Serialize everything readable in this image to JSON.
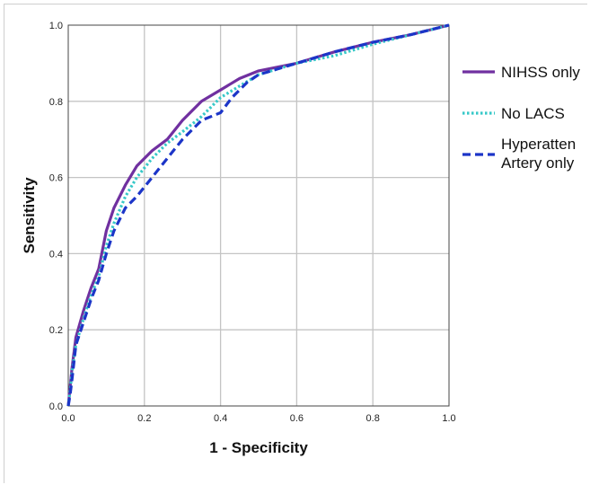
{
  "chart_data": {
    "type": "line",
    "title": "",
    "xlabel": "1 - Specificity",
    "ylabel": "Sensitivity",
    "xlim": [
      0,
      1
    ],
    "ylim": [
      0,
      1
    ],
    "x_ticks": [
      "0.0",
      "0.2",
      "0.4",
      "0.6",
      "0.8",
      "1.0"
    ],
    "y_ticks": [
      "0.0",
      "0.2",
      "0.4",
      "0.6",
      "0.8",
      "1.0"
    ],
    "grid": true,
    "legend_position": "right",
    "series": [
      {
        "name": "NIHSS only",
        "color": "#7030a0",
        "style": "solid",
        "points": [
          [
            0,
            0
          ],
          [
            0.005,
            0.05
          ],
          [
            0.01,
            0.1
          ],
          [
            0.02,
            0.18
          ],
          [
            0.04,
            0.25
          ],
          [
            0.06,
            0.31
          ],
          [
            0.08,
            0.36
          ],
          [
            0.1,
            0.46
          ],
          [
            0.12,
            0.52
          ],
          [
            0.15,
            0.58
          ],
          [
            0.18,
            0.63
          ],
          [
            0.22,
            0.67
          ],
          [
            0.26,
            0.7
          ],
          [
            0.3,
            0.75
          ],
          [
            0.35,
            0.8
          ],
          [
            0.4,
            0.83
          ],
          [
            0.45,
            0.86
          ],
          [
            0.5,
            0.88
          ],
          [
            0.6,
            0.9
          ],
          [
            0.7,
            0.93
          ],
          [
            0.8,
            0.955
          ],
          [
            0.9,
            0.975
          ],
          [
            1,
            1
          ]
        ]
      },
      {
        "name": "No LACS",
        "color": "#36c8c8",
        "style": "dotted",
        "points": [
          [
            0,
            0
          ],
          [
            0.005,
            0.04
          ],
          [
            0.01,
            0.09
          ],
          [
            0.02,
            0.16
          ],
          [
            0.04,
            0.23
          ],
          [
            0.06,
            0.29
          ],
          [
            0.08,
            0.34
          ],
          [
            0.1,
            0.42
          ],
          [
            0.12,
            0.48
          ],
          [
            0.15,
            0.55
          ],
          [
            0.18,
            0.6
          ],
          [
            0.22,
            0.65
          ],
          [
            0.26,
            0.69
          ],
          [
            0.3,
            0.72
          ],
          [
            0.35,
            0.76
          ],
          [
            0.4,
            0.81
          ],
          [
            0.45,
            0.84
          ],
          [
            0.5,
            0.87
          ],
          [
            0.6,
            0.9
          ],
          [
            0.7,
            0.92
          ],
          [
            0.8,
            0.95
          ],
          [
            0.9,
            0.975
          ],
          [
            1,
            1
          ]
        ]
      },
      {
        "name": "Hyperatten Artery only",
        "legend_lines": [
          "Hyperatten",
          "Artery only"
        ],
        "color": "#1c35c8",
        "style": "dashed",
        "points": [
          [
            0,
            0
          ],
          [
            0.005,
            0.03
          ],
          [
            0.01,
            0.07
          ],
          [
            0.02,
            0.16
          ],
          [
            0.04,
            0.22
          ],
          [
            0.06,
            0.28
          ],
          [
            0.08,
            0.33
          ],
          [
            0.1,
            0.4
          ],
          [
            0.12,
            0.46
          ],
          [
            0.15,
            0.52
          ],
          [
            0.18,
            0.55
          ],
          [
            0.22,
            0.6
          ],
          [
            0.26,
            0.65
          ],
          [
            0.3,
            0.7
          ],
          [
            0.35,
            0.75
          ],
          [
            0.4,
            0.77
          ],
          [
            0.43,
            0.81
          ],
          [
            0.47,
            0.85
          ],
          [
            0.5,
            0.87
          ],
          [
            0.6,
            0.9
          ],
          [
            0.7,
            0.93
          ],
          [
            0.8,
            0.955
          ],
          [
            0.9,
            0.975
          ],
          [
            1,
            1
          ]
        ]
      }
    ]
  }
}
